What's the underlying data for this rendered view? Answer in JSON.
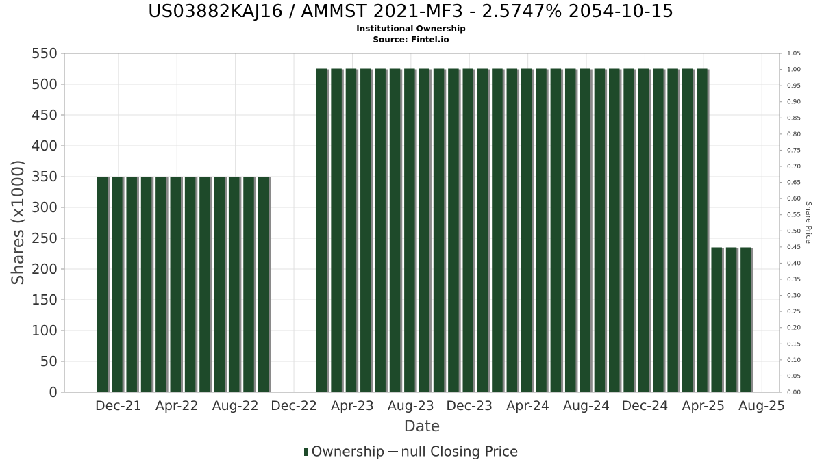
{
  "chart_data": {
    "type": "bar",
    "title": "US03882KAJ16 / AMMST 2021-MF3 - 2.5747% 2054-10-15",
    "subtitle_lines": [
      "Institutional Ownership",
      "Source: Fintel.io"
    ],
    "xlabel": "Date",
    "ylabel": "Shares (x1000)",
    "y2label": "Share Price",
    "ylim": [
      0,
      550
    ],
    "y2lim": [
      0,
      1.05
    ],
    "yticks": [
      0,
      50,
      100,
      150,
      200,
      250,
      300,
      350,
      400,
      450,
      500,
      550
    ],
    "y2ticks": [
      "0.00",
      "0.05",
      "0.10",
      "0.15",
      "0.20",
      "0.25",
      "0.30",
      "0.35",
      "0.40",
      "0.45",
      "0.50",
      "0.55",
      "0.60",
      "0.65",
      "0.70",
      "0.75",
      "0.80",
      "0.85",
      "0.90",
      "0.95",
      "1.00",
      "1.05"
    ],
    "x_tick_labels": [
      "Dec-21",
      "Apr-22",
      "Aug-22",
      "Dec-22",
      "Apr-23",
      "Aug-23",
      "Dec-23",
      "Apr-24",
      "Aug-24",
      "Dec-24",
      "Apr-25",
      "Aug-25"
    ],
    "grid": true,
    "legend_position": "bottom",
    "colors": {
      "bar": "#1e4a2a",
      "bar_shadow": "#8a8a8a",
      "grid": "#e0e0e0",
      "axis": "#999999"
    },
    "x_start": "2021-11",
    "series": [
      {
        "name": "Ownership",
        "values": [
          350,
          350,
          350,
          350,
          350,
          350,
          350,
          350,
          350,
          350,
          350,
          350,
          0,
          0,
          0,
          525,
          525,
          525,
          525,
          525,
          525,
          525,
          525,
          525,
          525,
          525,
          525,
          525,
          525,
          525,
          525,
          525,
          525,
          525,
          525,
          525,
          525,
          525,
          525,
          525,
          525,
          525,
          235,
          235,
          235
        ]
      }
    ],
    "legend": [
      "Ownership",
      "null Closing Price"
    ]
  }
}
